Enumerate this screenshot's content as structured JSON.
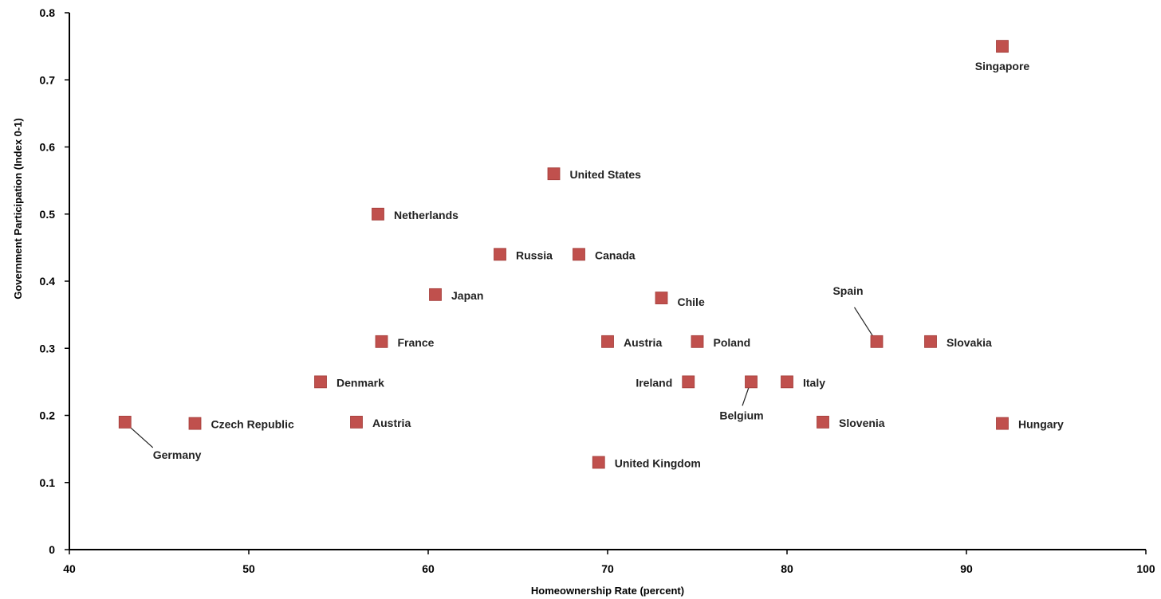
{
  "chart_data": {
    "type": "scatter",
    "xlabel": "Homeownership Rate (percent)",
    "ylabel": "Government Participation (Index 0-1)",
    "xlim": [
      40,
      100
    ],
    "ylim": [
      0,
      0.8
    ],
    "x_ticks": [
      40,
      50,
      60,
      70,
      80,
      90,
      100
    ],
    "y_ticks": [
      0,
      0.1,
      0.2,
      0.3,
      0.4,
      0.5,
      0.6,
      0.7,
      0.8
    ],
    "x_tick_labels": [
      "40",
      "50",
      "60",
      "70",
      "80",
      "90",
      "100"
    ],
    "y_tick_labels": [
      "0",
      "0.1",
      "0.2",
      "0.3",
      "0.4",
      "0.5",
      "0.6",
      "0.7",
      "0.8"
    ],
    "grid": false,
    "legend": "none",
    "marker_color": "#c0504d",
    "points": [
      {
        "label": "Germany",
        "x": 43.1,
        "y": 0.19
      },
      {
        "label": "Czech Republic",
        "x": 47,
        "y": 0.188
      },
      {
        "label": "Austria",
        "x": 56,
        "y": 0.19
      },
      {
        "label": "Denmark",
        "x": 54,
        "y": 0.25
      },
      {
        "label": "France",
        "x": 57.4,
        "y": 0.31
      },
      {
        "label": "Netherlands",
        "x": 57.2,
        "y": 0.5
      },
      {
        "label": "Japan",
        "x": 60.4,
        "y": 0.38
      },
      {
        "label": "Russia",
        "x": 64,
        "y": 0.44
      },
      {
        "label": "United States",
        "x": 67,
        "y": 0.56
      },
      {
        "label": "Canada",
        "x": 68.4,
        "y": 0.44
      },
      {
        "label": "United Kingdom",
        "x": 69.5,
        "y": 0.13
      },
      {
        "label": "Austria",
        "x": 70,
        "y": 0.31
      },
      {
        "label": "Chile",
        "x": 73,
        "y": 0.375
      },
      {
        "label": "Ireland",
        "x": 74.5,
        "y": 0.25
      },
      {
        "label": "Poland",
        "x": 75,
        "y": 0.31
      },
      {
        "label": "Belgium",
        "x": 78,
        "y": 0.25
      },
      {
        "label": "Italy",
        "x": 80,
        "y": 0.25
      },
      {
        "label": "Slovenia",
        "x": 82,
        "y": 0.19
      },
      {
        "label": "Spain",
        "x": 85,
        "y": 0.31
      },
      {
        "label": "Slovakia",
        "x": 88,
        "y": 0.31
      },
      {
        "label": "Hungary",
        "x": 92,
        "y": 0.188
      },
      {
        "label": "Singapore",
        "x": 92,
        "y": 0.75
      }
    ]
  }
}
